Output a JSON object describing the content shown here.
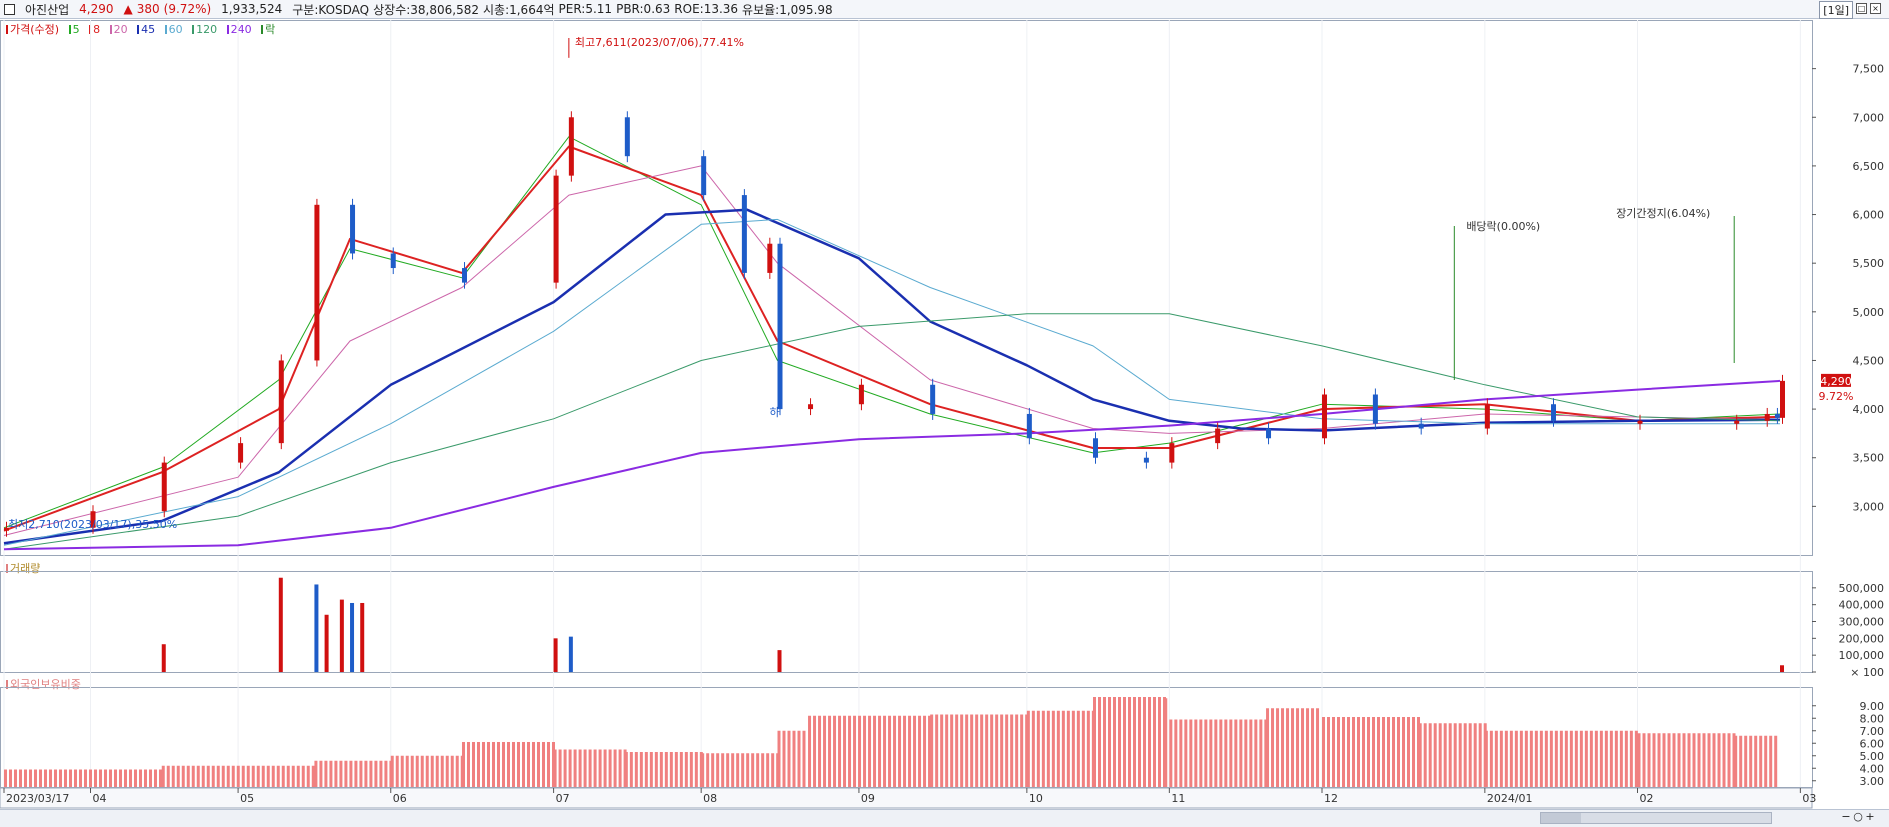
{
  "header": {
    "name": "아진산업",
    "price": "4,290",
    "arrow": "▲",
    "change": "380",
    "change_pct": "(9.72%)",
    "volume": "1,933,524",
    "market": "구분:KOSDAQ",
    "shares": "상장수:38,806,582",
    "mcap": "시총:1,664억",
    "per": "PER:5.11",
    "pbr": "PBR:0.63",
    "roe": "ROE:13.36",
    "retention": "유보율:1,095.98",
    "period": "[1일]"
  },
  "legend": {
    "price_label": "가격(수정)",
    "ma": [
      "5",
      "8",
      "20",
      "45",
      "60",
      "120",
      "240"
    ],
    "ma_colors": [
      "#22aa22",
      "#dd2222",
      "#cc66aa",
      "#1a2fb0",
      "#5aaad0",
      "#3a9a6a",
      "#8a2be2"
    ],
    "ex_label": "락"
  },
  "panels": {
    "volume_title": "거래량",
    "foreign_title": "외국인보유비중"
  },
  "annotations": {
    "high": "최고7,611(2023/07/06),77.41%",
    "low": "최저2,710(2023/03/17),35.50%",
    "dividend": "배당락(0.00%)",
    "halt": "장기간정지(6.04%)",
    "limit_down": "하",
    "current_price": "4,290",
    "current_pct": "9.72%"
  },
  "colors": {
    "up": "#d01010",
    "down": "#1e5cc8",
    "foreign": "#f08080"
  },
  "chart_data": [
    {
      "type": "candlestick",
      "title": "가격(수정)",
      "ylim": [
        2500,
        8000
      ],
      "yticks": [
        "3,000",
        "3,500",
        "4,000",
        "4,500",
        "5,000",
        "5,500",
        "6,000",
        "6,500",
        "7,000",
        "7,500"
      ],
      "ytick_values": [
        3000,
        3500,
        4000,
        4500,
        5000,
        5500,
        6000,
        6500,
        7000,
        7500
      ],
      "xlabels": [
        "2023/03/17",
        "04",
        "05",
        "06",
        "07",
        "08",
        "09",
        "10",
        "11",
        "12",
        "2024/01",
        "02",
        "03"
      ],
      "xlabel_dates": [
        "2023-03-17",
        "2023-04-03",
        "2023-05-02",
        "2023-06-01",
        "2023-07-03",
        "2023-08-01",
        "2023-09-01",
        "2023-10-04",
        "2023-11-01",
        "2023-12-01",
        "2024-01-02",
        "2024-02-01",
        "2024-03-04"
      ],
      "last_date": "2024-02-29",
      "series": [
        {
          "name": "가격(수정)",
          "role": "close",
          "x": [
            "2023-03-17",
            "2023-04-03",
            "2023-04-17",
            "2023-05-02",
            "2023-05-10",
            "2023-05-17",
            "2023-05-24",
            "2023-06-01",
            "2023-06-15",
            "2023-07-03",
            "2023-07-06",
            "2023-07-17",
            "2023-08-01",
            "2023-08-09",
            "2023-08-14",
            "2023-08-16",
            "2023-08-22",
            "2023-09-01",
            "2023-09-15",
            "2023-10-04",
            "2023-10-17",
            "2023-10-27",
            "2023-11-01",
            "2023-11-10",
            "2023-11-20",
            "2023-12-01",
            "2023-12-11",
            "2023-12-20",
            "2024-01-02",
            "2024-01-15",
            "2024-02-01",
            "2024-02-20",
            "2024-02-26",
            "2024-02-28",
            "2024-02-29"
          ],
          "y": [
            2780,
            2950,
            3450,
            3650,
            4500,
            6100,
            5600,
            5450,
            5300,
            6400,
            7000,
            6600,
            6200,
            5400,
            5700,
            4000,
            4050,
            4250,
            3950,
            3700,
            3500,
            3450,
            3650,
            3800,
            3700,
            4150,
            3850,
            3800,
            4050,
            3880,
            3880,
            3880,
            3950,
            3910,
            4290
          ]
        },
        {
          "name": "5",
          "role": "ma",
          "x": [
            "2023-03-17",
            "2023-04-17",
            "2023-05-10",
            "2023-05-24",
            "2023-06-15",
            "2023-07-06",
            "2023-08-01",
            "2023-08-16",
            "2023-09-15",
            "2023-10-17",
            "2023-11-01",
            "2023-12-01",
            "2024-01-02",
            "2024-02-01",
            "2024-02-29"
          ],
          "y": [
            2780,
            3400,
            4300,
            5650,
            5350,
            6800,
            6100,
            4500,
            3950,
            3550,
            3650,
            4050,
            4000,
            3880,
            3950
          ]
        },
        {
          "name": "8",
          "role": "ma",
          "x": [
            "2023-03-17",
            "2023-04-17",
            "2023-05-10",
            "2023-05-24",
            "2023-06-15",
            "2023-07-06",
            "2023-08-01",
            "2023-08-16",
            "2023-09-15",
            "2023-10-17",
            "2023-11-01",
            "2023-12-01",
            "2024-01-02",
            "2024-02-01",
            "2024-02-29"
          ],
          "y": [
            2750,
            3350,
            4000,
            5750,
            5400,
            6700,
            6200,
            4700,
            4050,
            3600,
            3600,
            4000,
            4050,
            3880,
            3920
          ]
        },
        {
          "name": "20",
          "role": "ma",
          "x": [
            "2023-03-17",
            "2023-05-02",
            "2023-05-24",
            "2023-06-15",
            "2023-07-06",
            "2023-08-01",
            "2023-08-16",
            "2023-09-15",
            "2023-10-17",
            "2023-11-01",
            "2023-12-01",
            "2024-01-02",
            "2024-02-29"
          ],
          "y": [
            2700,
            3300,
            4700,
            5250,
            6200,
            6500,
            5500,
            4300,
            3800,
            3750,
            3800,
            3950,
            3890
          ]
        },
        {
          "name": "45",
          "role": "ma",
          "x": [
            "2023-03-17",
            "2023-04-17",
            "2023-05-10",
            "2023-06-01",
            "2023-07-03",
            "2023-07-25",
            "2023-08-10",
            "2023-09-01",
            "2023-09-15",
            "2023-10-04",
            "2023-10-17",
            "2023-11-01",
            "2023-11-15",
            "2023-12-01",
            "2024-01-02",
            "2024-02-01",
            "2024-02-29"
          ],
          "y": [
            2620,
            2850,
            3350,
            4250,
            5100,
            6000,
            6050,
            5550,
            4900,
            4450,
            4100,
            3880,
            3800,
            3780,
            3860,
            3880,
            3890
          ]
        },
        {
          "name": "60",
          "role": "ma",
          "x": [
            "2023-03-17",
            "2023-05-02",
            "2023-06-01",
            "2023-07-03",
            "2023-08-01",
            "2023-08-16",
            "2023-09-15",
            "2023-10-17",
            "2023-11-01",
            "2023-12-01",
            "2024-01-02",
            "2024-02-29"
          ],
          "y": [
            2600,
            3100,
            3850,
            4800,
            5900,
            5950,
            5250,
            4650,
            4100,
            3900,
            3850,
            3850
          ]
        },
        {
          "name": "120",
          "role": "ma",
          "x": [
            "2023-03-17",
            "2023-05-02",
            "2023-06-01",
            "2023-07-03",
            "2023-08-01",
            "2023-09-01",
            "2023-10-04",
            "2023-11-01",
            "2023-12-01",
            "2024-01-02",
            "2024-02-01",
            "2024-02-29"
          ],
          "y": [
            2560,
            2900,
            3450,
            3900,
            4500,
            4850,
            4980,
            4980,
            4650,
            4250,
            3920,
            3880
          ]
        },
        {
          "name": "240",
          "role": "ma",
          "x": [
            "2023-03-17",
            "2023-05-02",
            "2023-06-01",
            "2023-07-03",
            "2023-08-01",
            "2023-09-01",
            "2023-10-04",
            "2023-11-01",
            "2023-12-01",
            "2024-01-02",
            "2024-02-01",
            "2024-02-29"
          ],
          "y": [
            2560,
            2600,
            2780,
            3200,
            3550,
            3690,
            3750,
            3830,
            3950,
            4100,
            4200,
            4290
          ]
        }
      ]
    },
    {
      "type": "bar",
      "title": "거래량",
      "ylim": [
        0,
        600000
      ],
      "yticks": [
        "500,000",
        "400,000",
        "300,000",
        "200,000",
        "100,000",
        "× 100"
      ],
      "ytick_values": [
        500000,
        400000,
        300000,
        200000,
        100000,
        0
      ],
      "x": [
        "2023-04-17",
        "2023-05-10",
        "2023-05-17",
        "2023-05-19",
        "2023-05-22",
        "2023-05-24",
        "2023-05-26",
        "2023-07-03",
        "2023-07-06",
        "2023-08-16",
        "2024-02-29"
      ],
      "values": [
        165000,
        560000,
        520000,
        340000,
        430000,
        410000,
        410000,
        200000,
        210000,
        130000,
        40000
      ]
    },
    {
      "type": "bar",
      "title": "외국인보유비중",
      "ylim": [
        2.5,
        10.5
      ],
      "yticks": [
        "9.00",
        "8.00",
        "7.00",
        "6.00",
        "5.00",
        "4.00",
        "3.00"
      ],
      "ytick_values": [
        9,
        8,
        7,
        6,
        5,
        4,
        3
      ],
      "x": [
        "2023-03-17",
        "2023-04-17",
        "2023-05-17",
        "2023-06-01",
        "2023-06-15",
        "2023-07-03",
        "2023-07-17",
        "2023-08-01",
        "2023-08-16",
        "2023-08-22",
        "2023-09-15",
        "2023-10-04",
        "2023-10-17",
        "2023-10-31",
        "2023-11-01",
        "2023-11-20",
        "2023-12-01",
        "2023-12-20",
        "2024-01-02",
        "2024-02-01",
        "2024-02-20",
        "2024-02-29"
      ],
      "values": [
        3.9,
        4.2,
        4.6,
        5.0,
        6.1,
        5.5,
        5.3,
        5.2,
        7.0,
        8.2,
        8.3,
        8.6,
        9.7,
        9.6,
        7.9,
        8.8,
        8.1,
        7.6,
        7.0,
        6.8,
        6.6,
        6.1
      ]
    }
  ]
}
